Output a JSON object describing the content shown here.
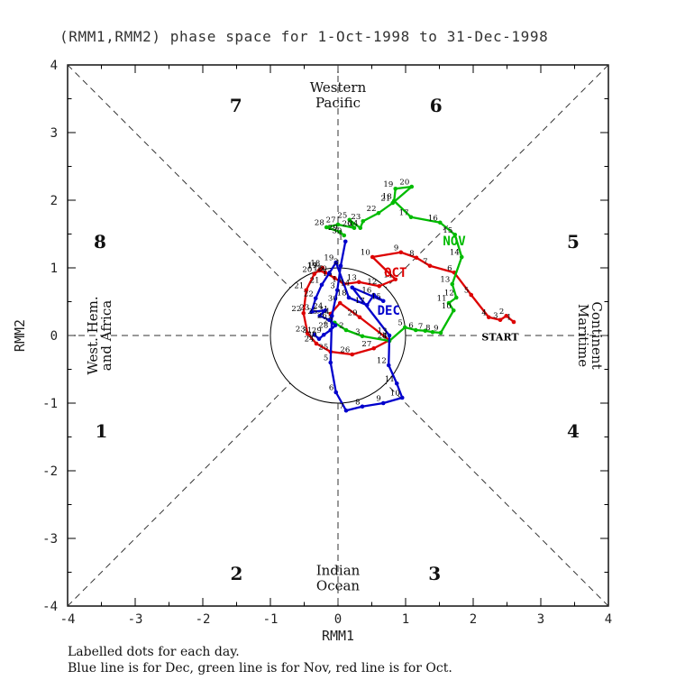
{
  "captions": {
    "line1": "Labelled dots for each day.",
    "line2": "Blue line is for Dec, green line is for Nov, red line is for Oct."
  },
  "chart_data": {
    "type": "line",
    "title": "(RMM1,RMM2) phase space for  1-Oct-1998 to 31-Dec-1998",
    "xlabel": "RMM1",
    "ylabel": "RMM2",
    "xlim": [
      -4,
      4
    ],
    "ylim": [
      -4,
      4
    ],
    "ticks": [
      -4,
      -3,
      -2,
      -1,
      0,
      1,
      2,
      3,
      4
    ],
    "tick_labels": [
      "-4",
      "-3",
      "-2",
      "-1",
      "0",
      "1",
      "2",
      "3",
      "4"
    ],
    "minor_tick_step": 0.5,
    "unit_circle_radius": 1,
    "grid": "dashed octant phase lines",
    "legend_position": "caption below plot",
    "colors": {
      "oct": "#dd0000",
      "nov": "#00bb00",
      "dec": "#0000cc",
      "frame": "#000000"
    },
    "phase_labels": [
      {
        "n": "1",
        "x": -3.5,
        "y": -1.41
      },
      {
        "n": "2",
        "x": -1.5,
        "y": -3.52
      },
      {
        "n": "3",
        "x": 1.43,
        "y": -3.52
      },
      {
        "n": "4",
        "x": 3.48,
        "y": -1.41
      },
      {
        "n": "5",
        "x": 3.48,
        "y": 1.39
      },
      {
        "n": "6",
        "x": 1.45,
        "y": 3.4
      },
      {
        "n": "7",
        "x": -1.51,
        "y": 3.4
      },
      {
        "n": "8",
        "x": -3.52,
        "y": 1.39
      }
    ],
    "region_labels": {
      "top": {
        "lines": [
          "Western",
          "Pacific"
        ],
        "x": [
          0.0,
          0.0
        ],
        "y": [
          3.67,
          3.44
        ]
      },
      "bottom": {
        "lines": [
          "Indian",
          "Ocean"
        ],
        "x": [
          0.0,
          0.0
        ],
        "y": [
          -3.47,
          -3.7
        ]
      },
      "left": {
        "lines": [
          "West. Hem.",
          "and Africa"
        ],
        "x": [
          -3.63,
          -3.43
        ],
        "y": [
          0.0,
          0.0
        ]
      },
      "right": {
        "lines": [
          "Maritime",
          "Continent"
        ],
        "x": [
          3.49,
          3.69
        ],
        "y": [
          0.0,
          0.0
        ]
      }
    },
    "annotations": [
      {
        "text": "START",
        "x": 2.4,
        "y": -0.02,
        "color": "#000000",
        "kind": "start"
      },
      {
        "text": "OCT",
        "x": 0.85,
        "y": 0.92,
        "color": "#dd0000",
        "kind": "month"
      },
      {
        "text": "NOV",
        "x": 1.72,
        "y": 1.39,
        "color": "#00bb00",
        "kind": "month"
      },
      {
        "text": "DEC",
        "x": 0.75,
        "y": 0.36,
        "color": "#0000cc",
        "kind": "month"
      }
    ],
    "series": [
      {
        "name": "Oct",
        "color": "#dd0000",
        "points": [
          {
            "day": 1,
            "x": 2.6,
            "y": 0.2
          },
          {
            "day": 2,
            "x": 2.49,
            "y": 0.29
          },
          {
            "day": 3,
            "x": 2.4,
            "y": 0.23
          },
          {
            "day": 4,
            "x": 2.23,
            "y": 0.27
          },
          {
            "day": 5,
            "x": 1.97,
            "y": 0.6
          },
          {
            "day": 6,
            "x": 1.72,
            "y": 0.93
          },
          {
            "day": 7,
            "x": 1.36,
            "y": 1.03
          },
          {
            "day": 8,
            "x": 1.16,
            "y": 1.15
          },
          {
            "day": 9,
            "x": 0.93,
            "y": 1.23
          },
          {
            "day": 10,
            "x": 0.51,
            "y": 1.16
          },
          {
            "day": 11,
            "x": 0.85,
            "y": 0.83
          },
          {
            "day": 12,
            "x": 0.61,
            "y": 0.73
          },
          {
            "day": 13,
            "x": 0.31,
            "y": 0.79
          },
          {
            "day": 14,
            "x": 0.09,
            "y": 0.76
          },
          {
            "day": 15,
            "x": -0.05,
            "y": 0.85
          },
          {
            "day": 16,
            "x": -0.19,
            "y": 0.93
          },
          {
            "day": 17,
            "x": -0.28,
            "y": 0.96
          },
          {
            "day": 18,
            "x": -0.23,
            "y": 1.0
          },
          {
            "day": 19,
            "x": -0.27,
            "y": 0.97
          },
          {
            "day": 20,
            "x": -0.35,
            "y": 0.91
          },
          {
            "day": 21,
            "x": -0.47,
            "y": 0.67
          },
          {
            "day": 22,
            "x": -0.51,
            "y": 0.33
          },
          {
            "day": 23,
            "x": -0.45,
            "y": 0.03
          },
          {
            "day": 24,
            "x": -0.32,
            "y": -0.12
          },
          {
            "day": 25,
            "x": -0.11,
            "y": -0.24
          },
          {
            "day": 26,
            "x": 0.21,
            "y": -0.28
          },
          {
            "day": 27,
            "x": 0.53,
            "y": -0.19
          },
          {
            "day": 28,
            "x": 0.76,
            "y": -0.07
          },
          {
            "day": 29,
            "x": 0.32,
            "y": 0.27
          },
          {
            "day": 30,
            "x": 0.03,
            "y": 0.48
          },
          {
            "day": 31,
            "x": -0.11,
            "y": 0.32
          }
        ]
      },
      {
        "name": "Nov",
        "color": "#00bb00",
        "points": [
          {
            "day": 1,
            "x": -0.05,
            "y": 0.19
          },
          {
            "day": 2,
            "x": 0.12,
            "y": 0.08
          },
          {
            "day": 3,
            "x": 0.36,
            "y": -0.01
          },
          {
            "day": 4,
            "x": 0.76,
            "y": -0.08
          },
          {
            "day": 5,
            "x": 0.99,
            "y": 0.12
          },
          {
            "day": 6,
            "x": 1.15,
            "y": 0.08
          },
          {
            "day": 7,
            "x": 1.29,
            "y": 0.07
          },
          {
            "day": 8,
            "x": 1.4,
            "y": 0.05
          },
          {
            "day": 9,
            "x": 1.52,
            "y": 0.04
          },
          {
            "day": 10,
            "x": 1.71,
            "y": 0.37
          },
          {
            "day": 11,
            "x": 1.64,
            "y": 0.48
          },
          {
            "day": 12,
            "x": 1.75,
            "y": 0.56
          },
          {
            "day": 13,
            "x": 1.69,
            "y": 0.76
          },
          {
            "day": 14,
            "x": 1.83,
            "y": 1.16
          },
          {
            "day": 15,
            "x": 1.73,
            "y": 1.49
          },
          {
            "day": 16,
            "x": 1.51,
            "y": 1.67
          },
          {
            "day": 17,
            "x": 1.08,
            "y": 1.75
          },
          {
            "day": 18,
            "x": 0.83,
            "y": 1.99
          },
          {
            "day": 19,
            "x": 0.85,
            "y": 2.17
          },
          {
            "day": 20,
            "x": 1.09,
            "y": 2.2
          },
          {
            "day": 21,
            "x": 0.81,
            "y": 1.96
          },
          {
            "day": 22,
            "x": 0.6,
            "y": 1.81
          },
          {
            "day": 23,
            "x": 0.37,
            "y": 1.69
          },
          {
            "day": 24,
            "x": 0.33,
            "y": 1.59
          },
          {
            "day": 25,
            "x": 0.17,
            "y": 1.71
          },
          {
            "day": 26,
            "x": 0.24,
            "y": 1.59
          },
          {
            "day": 27,
            "x": 0.0,
            "y": 1.64
          },
          {
            "day": 28,
            "x": -0.17,
            "y": 1.6
          },
          {
            "day": 29,
            "x": 0.03,
            "y": 1.53
          },
          {
            "day": 30,
            "x": 0.09,
            "y": 1.48
          }
        ]
      },
      {
        "name": "Dec",
        "color": "#0000cc",
        "points": [
          {
            "day": 1,
            "x": 0.11,
            "y": 1.39
          },
          {
            "day": 2,
            "x": 0.04,
            "y": 1.03
          },
          {
            "day": 3,
            "x": -0.01,
            "y": 0.67
          },
          {
            "day": 4,
            "x": -0.09,
            "y": 0.29
          },
          {
            "day": 5,
            "x": -0.11,
            "y": -0.4
          },
          {
            "day": 6,
            "x": -0.03,
            "y": -0.84
          },
          {
            "day": 7,
            "x": 0.12,
            "y": -1.11
          },
          {
            "day": 8,
            "x": 0.36,
            "y": -1.05
          },
          {
            "day": 9,
            "x": 0.67,
            "y": -1.0
          },
          {
            "day": 10,
            "x": 0.95,
            "y": -0.92
          },
          {
            "day": 11,
            "x": 0.87,
            "y": -0.71
          },
          {
            "day": 12,
            "x": 0.75,
            "y": -0.44
          },
          {
            "day": 13,
            "x": 0.76,
            "y": 0.0
          },
          {
            "day": 14,
            "x": 0.21,
            "y": 0.71
          },
          {
            "day": 15,
            "x": 0.67,
            "y": 0.51
          },
          {
            "day": 16,
            "x": 0.53,
            "y": 0.6
          },
          {
            "day": 17,
            "x": 0.43,
            "y": 0.45
          },
          {
            "day": 18,
            "x": 0.16,
            "y": 0.56
          },
          {
            "day": 19,
            "x": -0.03,
            "y": 1.08
          },
          {
            "day": 20,
            "x": -0.13,
            "y": 0.92
          },
          {
            "day": 21,
            "x": -0.24,
            "y": 0.75
          },
          {
            "day": 22,
            "x": -0.33,
            "y": 0.55
          },
          {
            "day": 23,
            "x": -0.39,
            "y": 0.35
          },
          {
            "day": 24,
            "x": -0.19,
            "y": 0.37
          },
          {
            "day": 25,
            "x": -0.27,
            "y": 0.29
          },
          {
            "day": 26,
            "x": -0.13,
            "y": 0.23
          },
          {
            "day": 27,
            "x": -0.04,
            "y": 0.15
          },
          {
            "day": 28,
            "x": -0.11,
            "y": 0.08
          },
          {
            "day": 29,
            "x": -0.21,
            "y": 0.01
          },
          {
            "day": 30,
            "x": -0.28,
            "y": -0.05
          },
          {
            "day": 31,
            "x": -0.35,
            "y": 0.01
          }
        ]
      }
    ]
  }
}
